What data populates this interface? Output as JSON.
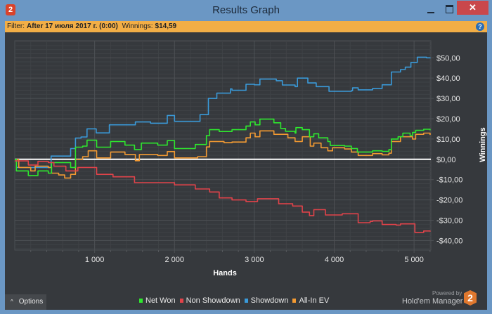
{
  "window": {
    "title": "Results Graph",
    "icon_label": "2",
    "close_label": "✕"
  },
  "filter": {
    "label": "Filter:",
    "value": "After 17 июля 2017 г. (0:00)",
    "winnings_label": "Winnings:",
    "winnings_value": "$14,59",
    "help_label": "?"
  },
  "footer": {
    "options_label": "Options",
    "options_icon": "^",
    "powered_by": "Powered by",
    "brand": "Hold'em Manager",
    "brand_logo": "2"
  },
  "colors": {
    "net_won": "#2ee82e",
    "non_showdown": "#e2434a",
    "showdown": "#3a9ad9",
    "all_in_ev": "#f39a32"
  },
  "chart_data": {
    "type": "line",
    "xlabel": "Hands",
    "ylabel": "Winnings",
    "xlim": [
      0,
      5210
    ],
    "ylim": [
      -44.7,
      58.4
    ],
    "x_ticks": [
      1000,
      2000,
      3000,
      4000,
      5000
    ],
    "x_tick_labels": [
      "1 000",
      "2 000",
      "3 000",
      "4 000",
      "5 000"
    ],
    "y_ticks": [
      50,
      40,
      30,
      20,
      10,
      0,
      -10,
      -20,
      -30,
      -40
    ],
    "y_tick_labels": [
      "$50,00",
      "$40,00",
      "$30,00",
      "$20,00",
      "$10,00",
      "$0,00",
      "-$10,00",
      "-$20,00",
      "-$30,00",
      "-$40,00"
    ],
    "grid": true,
    "legend_position": "bottom",
    "series": [
      {
        "name": "Net Won",
        "key": "net_won",
        "points": [
          [
            0,
            0
          ],
          [
            20,
            -5.7
          ],
          [
            170,
            -8
          ],
          [
            290,
            -5.7
          ],
          [
            420,
            -6.8
          ],
          [
            460,
            -1.6
          ],
          [
            700,
            -4
          ],
          [
            760,
            6
          ],
          [
            850,
            6.5
          ],
          [
            905,
            9.4
          ],
          [
            1025,
            6
          ],
          [
            1200,
            8.8
          ],
          [
            1380,
            7
          ],
          [
            1500,
            4.8
          ],
          [
            1585,
            8
          ],
          [
            1790,
            7
          ],
          [
            1910,
            9.2
          ],
          [
            2000,
            5.3
          ],
          [
            2260,
            7.3
          ],
          [
            2400,
            11.7
          ],
          [
            2440,
            14.6
          ],
          [
            2560,
            13.7
          ],
          [
            2720,
            14.6
          ],
          [
            2895,
            16.4
          ],
          [
            2950,
            18.4
          ],
          [
            3010,
            17
          ],
          [
            3070,
            19.8
          ],
          [
            3245,
            18
          ],
          [
            3330,
            15.2
          ],
          [
            3390,
            13.8
          ],
          [
            3510,
            12.9
          ],
          [
            3520,
            15.6
          ],
          [
            3600,
            14.6
          ],
          [
            3690,
            11.1
          ],
          [
            3745,
            12.6
          ],
          [
            3805,
            10.6
          ],
          [
            3920,
            8.8
          ],
          [
            3950,
            6.8
          ],
          [
            4130,
            6.5
          ],
          [
            4215,
            5.3
          ],
          [
            4290,
            3.6
          ],
          [
            4480,
            4.2
          ],
          [
            4600,
            3.9
          ],
          [
            4685,
            4.8
          ],
          [
            4715,
            10
          ],
          [
            4800,
            11.1
          ],
          [
            4860,
            12.9
          ],
          [
            4950,
            11.7
          ],
          [
            4980,
            13.2
          ],
          [
            5020,
            14.3
          ],
          [
            5120,
            14.8
          ],
          [
            5200,
            14.3
          ]
        ]
      },
      {
        "name": "Non Showdown",
        "key": "non_showdown",
        "points": [
          [
            0,
            -0.8
          ],
          [
            170,
            -2.8
          ],
          [
            290,
            -1
          ],
          [
            420,
            -1.6
          ],
          [
            490,
            -3.4
          ],
          [
            640,
            -5.7
          ],
          [
            790,
            -4
          ],
          [
            1025,
            -7.4
          ],
          [
            1230,
            -8.6
          ],
          [
            1500,
            -11.5
          ],
          [
            1730,
            -11.5
          ],
          [
            2000,
            -12.6
          ],
          [
            2260,
            -14.6
          ],
          [
            2440,
            -16.1
          ],
          [
            2560,
            -19
          ],
          [
            2720,
            -20
          ],
          [
            2895,
            -20.8
          ],
          [
            3040,
            -19.4
          ],
          [
            3305,
            -21.9
          ],
          [
            3480,
            -23
          ],
          [
            3600,
            -26
          ],
          [
            3690,
            -27.7
          ],
          [
            3745,
            -24.8
          ],
          [
            3890,
            -27.4
          ],
          [
            4100,
            -26.8
          ],
          [
            4300,
            -31.2
          ],
          [
            4450,
            -30.6
          ],
          [
            4480,
            -30.3
          ],
          [
            4600,
            -32.1
          ],
          [
            4775,
            -32.4
          ],
          [
            4830,
            -31.8
          ],
          [
            5010,
            -36
          ],
          [
            5120,
            -35.3
          ],
          [
            5200,
            -35.6
          ]
        ]
      },
      {
        "name": "Showdown",
        "key": "showdown",
        "points": [
          [
            0,
            0
          ],
          [
            20,
            -4
          ],
          [
            450,
            -4
          ],
          [
            455,
            1.6
          ],
          [
            700,
            5.3
          ],
          [
            760,
            10.5
          ],
          [
            830,
            11
          ],
          [
            905,
            15
          ],
          [
            1020,
            13
          ],
          [
            1185,
            17
          ],
          [
            1510,
            18.4
          ],
          [
            1700,
            17.8
          ],
          [
            1910,
            21.6
          ],
          [
            2000,
            18.7
          ],
          [
            2320,
            22
          ],
          [
            2425,
            30
          ],
          [
            2530,
            32.6
          ],
          [
            2700,
            34.7
          ],
          [
            2720,
            34
          ],
          [
            2895,
            37
          ],
          [
            3000,
            36.7
          ],
          [
            3070,
            39.5
          ],
          [
            3275,
            38.7
          ],
          [
            3350,
            36.6
          ],
          [
            3510,
            35.8
          ],
          [
            3540,
            40
          ],
          [
            3670,
            37.6
          ],
          [
            3775,
            35.8
          ],
          [
            3935,
            33.5
          ],
          [
            4215,
            33.8
          ],
          [
            4230,
            35.2
          ],
          [
            4300,
            34.2
          ],
          [
            4480,
            34.9
          ],
          [
            4600,
            36.7
          ],
          [
            4715,
            43
          ],
          [
            4830,
            44.2
          ],
          [
            4890,
            45.4
          ],
          [
            4960,
            47.7
          ],
          [
            5040,
            50.3
          ],
          [
            5155,
            50
          ],
          [
            5200,
            49.7
          ]
        ]
      },
      {
        "name": "All-In EV",
        "key": "all_in_ev",
        "points": [
          [
            0,
            0
          ],
          [
            50,
            -4
          ],
          [
            200,
            -5.7
          ],
          [
            255,
            -3.4
          ],
          [
            420,
            -4
          ],
          [
            460,
            -6.8
          ],
          [
            550,
            -7.7
          ],
          [
            625,
            -9.2
          ],
          [
            700,
            -7.4
          ],
          [
            760,
            0
          ],
          [
            850,
            1.3
          ],
          [
            920,
            4.2
          ],
          [
            1025,
            0.7
          ],
          [
            1200,
            3.6
          ],
          [
            1380,
            2.4
          ],
          [
            1510,
            -0.7
          ],
          [
            1560,
            2.4
          ],
          [
            1790,
            1.9
          ],
          [
            1910,
            3.8
          ],
          [
            2000,
            0.7
          ],
          [
            2290,
            1.3
          ],
          [
            2400,
            6.1
          ],
          [
            2440,
            8.8
          ],
          [
            2620,
            8.2
          ],
          [
            2720,
            8.5
          ],
          [
            2895,
            10.6
          ],
          [
            2950,
            12.9
          ],
          [
            3010,
            11.1
          ],
          [
            3070,
            14
          ],
          [
            3245,
            12.3
          ],
          [
            3420,
            10.6
          ],
          [
            3510,
            8.8
          ],
          [
            3600,
            11.1
          ],
          [
            3700,
            6.5
          ],
          [
            3745,
            8
          ],
          [
            3835,
            5.7
          ],
          [
            3920,
            4.2
          ],
          [
            3980,
            5.7
          ],
          [
            4130,
            5.1
          ],
          [
            4215,
            3.6
          ],
          [
            4300,
            1.9
          ],
          [
            4480,
            2.8
          ],
          [
            4600,
            2.2
          ],
          [
            4685,
            3
          ],
          [
            4715,
            8.8
          ],
          [
            4830,
            11.1
          ],
          [
            4980,
            10
          ],
          [
            5020,
            12.3
          ],
          [
            5120,
            12.9
          ],
          [
            5200,
            12
          ]
        ]
      }
    ]
  }
}
